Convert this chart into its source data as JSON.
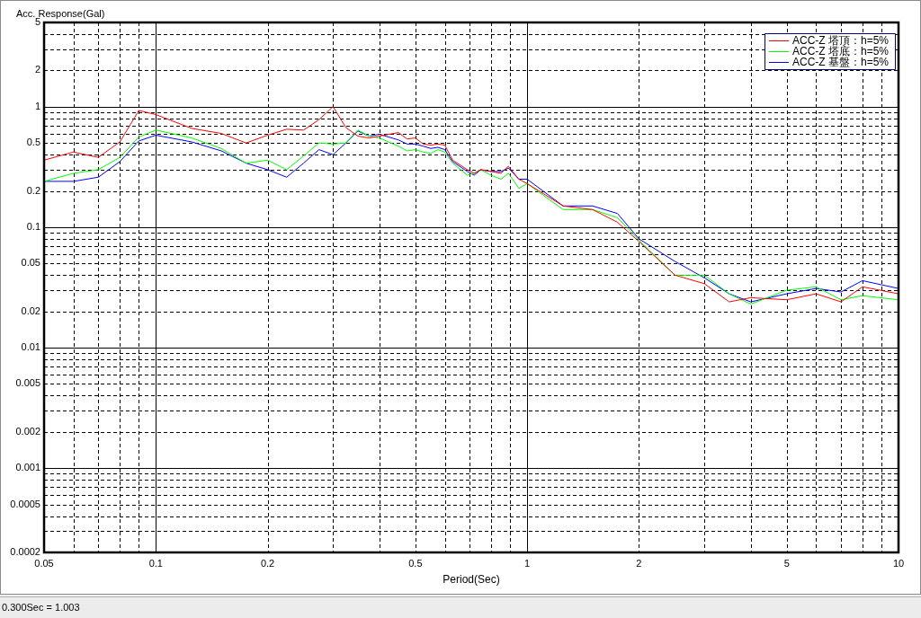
{
  "chart_data": {
    "type": "line",
    "xlabel": "Period(Sec)",
    "ylabel": "Acc. Response(Gal)",
    "annotations": [
      "0.300Sec = 1.003"
    ],
    "x": [
      0.05,
      0.06,
      0.07,
      0.08,
      0.09,
      0.1,
      0.125,
      0.15,
      0.175,
      0.2,
      0.225,
      0.25,
      0.275,
      0.3,
      0.325,
      0.35,
      0.375,
      0.4,
      0.45,
      0.475,
      0.5,
      0.525,
      0.55,
      0.575,
      0.6,
      0.63,
      0.69,
      0.72,
      0.75,
      0.8,
      0.85,
      0.89,
      0.95,
      1,
      1.25,
      1.5,
      1.75,
      2,
      2.5,
      3,
      3.5,
      4,
      5,
      6,
      7,
      8,
      10
    ],
    "series": [
      {
        "name": "ACC-Z 塔頂：h=5%",
        "color": "#ff0000",
        "values": [
          0.36,
          0.42,
          0.38,
          0.51,
          0.93,
          0.86,
          0.66,
          0.6,
          0.5,
          0.58,
          0.65,
          0.64,
          0.78,
          1.003,
          0.67,
          0.57,
          0.55,
          0.57,
          0.61,
          0.54,
          0.55,
          0.49,
          0.48,
          0.49,
          0.48,
          0.36,
          0.3,
          0.28,
          0.3,
          0.29,
          0.28,
          0.32,
          0.25,
          0.23,
          0.15,
          0.14,
          0.11,
          0.076,
          0.04,
          0.034,
          0.024,
          0.026,
          0.025,
          0.028,
          0.024,
          0.032,
          0.028
        ]
      },
      {
        "name": "ACC-Z 塔底：h=5%",
        "color": "#00ff00",
        "values": [
          0.24,
          0.28,
          0.3,
          0.38,
          0.56,
          0.64,
          0.55,
          0.45,
          0.34,
          0.36,
          0.3,
          0.39,
          0.5,
          0.49,
          0.5,
          0.64,
          0.57,
          0.55,
          0.47,
          0.43,
          0.44,
          0.42,
          0.41,
          0.44,
          0.42,
          0.34,
          0.27,
          0.28,
          0.3,
          0.27,
          0.25,
          0.28,
          0.21,
          0.23,
          0.14,
          0.14,
          0.12,
          0.078,
          0.04,
          0.04,
          0.028,
          0.023,
          0.03,
          0.032,
          0.025,
          0.027,
          0.025
        ]
      },
      {
        "name": "ACC-Z 基盤：h=5%",
        "color": "#0000ff",
        "values": [
          0.24,
          0.24,
          0.26,
          0.35,
          0.52,
          0.58,
          0.51,
          0.43,
          0.34,
          0.3,
          0.26,
          0.34,
          0.44,
          0.4,
          0.5,
          0.63,
          0.57,
          0.59,
          0.53,
          0.49,
          0.49,
          0.47,
          0.45,
          0.46,
          0.44,
          0.35,
          0.29,
          0.27,
          0.3,
          0.29,
          0.29,
          0.31,
          0.25,
          0.25,
          0.15,
          0.15,
          0.13,
          0.08,
          0.052,
          0.038,
          0.028,
          0.024,
          0.028,
          0.031,
          0.029,
          0.036,
          0.031
        ]
      }
    ],
    "xlim": [
      0.05,
      10
    ],
    "xticks": [
      0.05,
      {
        "value": 0.06,
        "label": null
      },
      {
        "value": 0.07,
        "label": null
      },
      {
        "value": 0.08,
        "label": null
      },
      {
        "value": 0.09,
        "label": null
      },
      0.1,
      0.2,
      {
        "value": 0.3,
        "label": null
      },
      {
        "value": 0.4,
        "label": null
      },
      0.5,
      {
        "value": 0.6,
        "label": null
      },
      {
        "value": 0.7,
        "label": null
      },
      {
        "value": 0.8,
        "label": null
      },
      {
        "value": 0.9,
        "label": null
      },
      1,
      2,
      {
        "value": 3,
        "label": null
      },
      {
        "value": 4,
        "label": null
      },
      5,
      {
        "value": 6,
        "label": null
      },
      {
        "value": 7,
        "label": null
      },
      {
        "value": 8,
        "label": null
      },
      {
        "value": 9,
        "label": null
      },
      10
    ],
    "ylim": [
      0.0002,
      5
    ],
    "yticks": [
      0.0002,
      {
        "value": 0.0003,
        "label": null
      },
      {
        "value": 0.0004,
        "label": null
      },
      0.0005,
      {
        "value": 0.0006,
        "label": null
      },
      {
        "value": 0.0007,
        "label": null
      },
      {
        "value": 0.0008,
        "label": null
      },
      {
        "value": 0.0009,
        "label": null
      },
      0.001,
      0.002,
      {
        "value": 0.003,
        "label": null
      },
      {
        "value": 0.004,
        "label": null
      },
      0.005,
      {
        "value": 0.006,
        "label": null
      },
      {
        "value": 0.007,
        "label": null
      },
      {
        "value": 0.008,
        "label": null
      },
      {
        "value": 0.009,
        "label": null
      },
      0.01,
      0.02,
      {
        "value": 0.03,
        "label": null
      },
      {
        "value": 0.04,
        "label": null
      },
      0.05,
      {
        "value": 0.06,
        "label": null
      },
      {
        "value": 0.07,
        "label": null
      },
      {
        "value": 0.08,
        "label": null
      },
      {
        "value": 0.09,
        "label": null
      },
      0.1,
      0.2,
      {
        "value": 0.3,
        "label": null
      },
      {
        "value": 0.4,
        "label": null
      },
      0.5,
      {
        "value": 0.6,
        "label": null
      },
      {
        "value": 0.7,
        "label": null
      },
      {
        "value": 0.8,
        "label": null
      },
      {
        "value": 0.9,
        "label": null
      },
      1,
      2,
      {
        "value": 3,
        "label": null
      },
      {
        "value": 4,
        "label": null
      },
      5
    ],
    "log": "xy",
    "grid": true,
    "legend": "top right",
    "marker": "none",
    "line_style": "solid"
  }
}
